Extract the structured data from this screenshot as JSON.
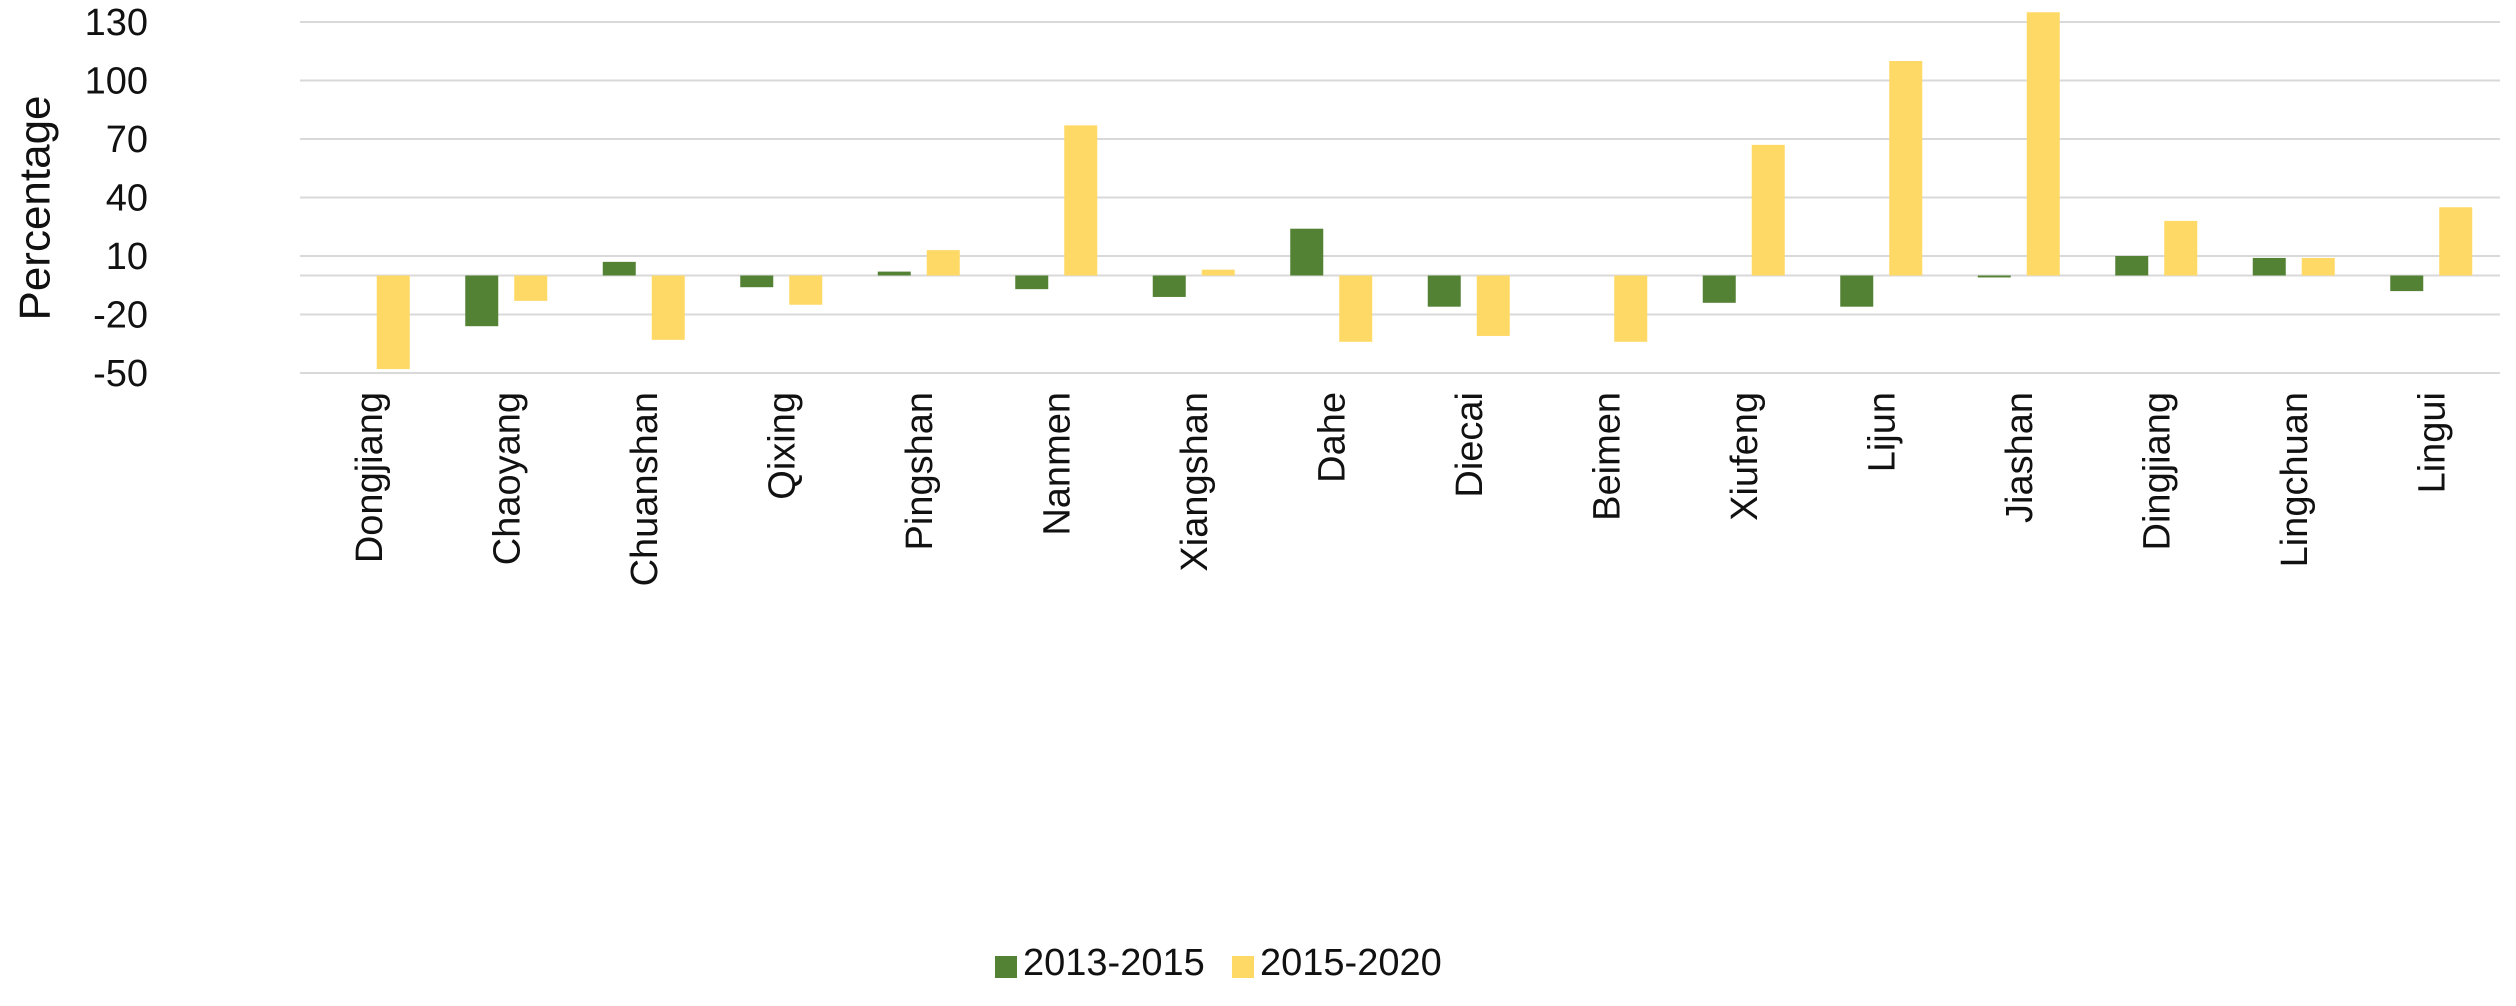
{
  "chart_data": {
    "type": "bar",
    "title": "",
    "xlabel": "",
    "ylabel": "Percentage",
    "ylim": [
      -50,
      135
    ],
    "yticks": [
      130,
      100,
      70,
      40,
      10,
      -20,
      -50
    ],
    "ytick_labels": [
      "130",
      "100",
      "70",
      "40",
      "10",
      "-20",
      "-50"
    ],
    "grid": true,
    "legend_position": "bottom",
    "categories": [
      "Dongjiang",
      "Chaoyang",
      "Chuanshan",
      "Qixing",
      "Pingshan",
      "Nanmen",
      "Xiangshan",
      "Dahe",
      "Diecai",
      "Beimen",
      "Xiufeng",
      "Lijun",
      "Jiashan",
      "Dingjiang",
      "Lingchuan",
      "Lingui"
    ],
    "series": [
      {
        "name": "2013-2015",
        "color": "#548235",
        "values": [
          0,
          -26,
          7,
          -6,
          2,
          -7,
          -11,
          24,
          -16,
          0,
          -14,
          -16,
          -1,
          10,
          9,
          -8
        ]
      },
      {
        "name": "2015-2020",
        "color": "#ffd966",
        "values": [
          -48,
          -13,
          -33,
          -15,
          13,
          77,
          3,
          -34,
          -31,
          -34,
          67,
          110,
          135,
          28,
          9,
          35
        ]
      }
    ]
  }
}
